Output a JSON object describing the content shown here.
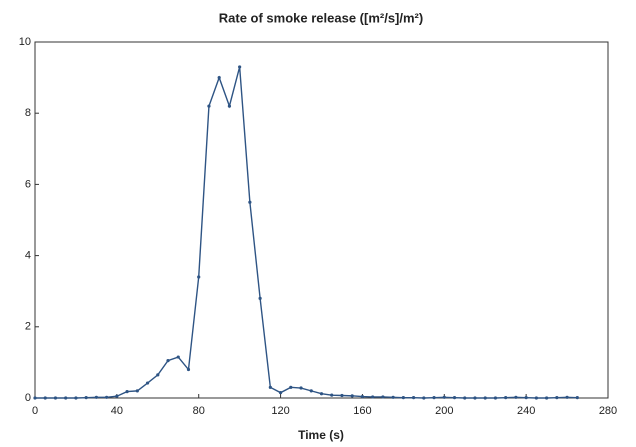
{
  "chart_data": {
    "type": "line",
    "title": "Rate of smoke release ([m²/s]/m²)",
    "x_label": "Time (s)",
    "x": [
      0,
      5,
      10,
      15,
      20,
      25,
      30,
      35,
      40,
      45,
      50,
      55,
      60,
      65,
      70,
      75,
      80,
      85,
      90,
      95,
      100,
      105,
      110,
      115,
      120,
      125,
      130,
      135,
      140,
      145,
      150,
      155,
      160,
      165,
      170,
      175,
      180,
      185,
      190,
      195,
      200,
      205,
      210,
      215,
      220,
      225,
      230,
      235,
      240,
      245,
      250,
      255,
      260,
      265
    ],
    "series": [
      {
        "color": "#2e5484",
        "values": [
          0,
          0,
          0,
          0,
          0,
          0.01,
          0.02,
          0.02,
          0.05,
          0.18,
          0.2,
          0.42,
          0.65,
          1.05,
          1.15,
          0.8,
          3.4,
          8.2,
          9.0,
          8.2,
          9.3,
          5.5,
          2.8,
          0.3,
          0.15,
          0.3,
          0.28,
          0.2,
          0.12,
          0.08,
          0.07,
          0.06,
          0.04,
          0.03,
          0.03,
          0.02,
          0.01,
          0.01,
          0,
          0.01,
          0.02,
          0.01,
          0,
          0,
          0,
          0,
          0.01,
          0.02,
          0.01,
          0,
          0,
          0.01,
          0.02,
          0.01
        ]
      }
    ],
    "xlim": [
      0,
      280
    ],
    "xticks": [
      0,
      40,
      80,
      120,
      160,
      200,
      240,
      280
    ],
    "ylim": [
      0,
      10
    ],
    "yticks": [
      0,
      2,
      4,
      6,
      8,
      10
    ]
  }
}
